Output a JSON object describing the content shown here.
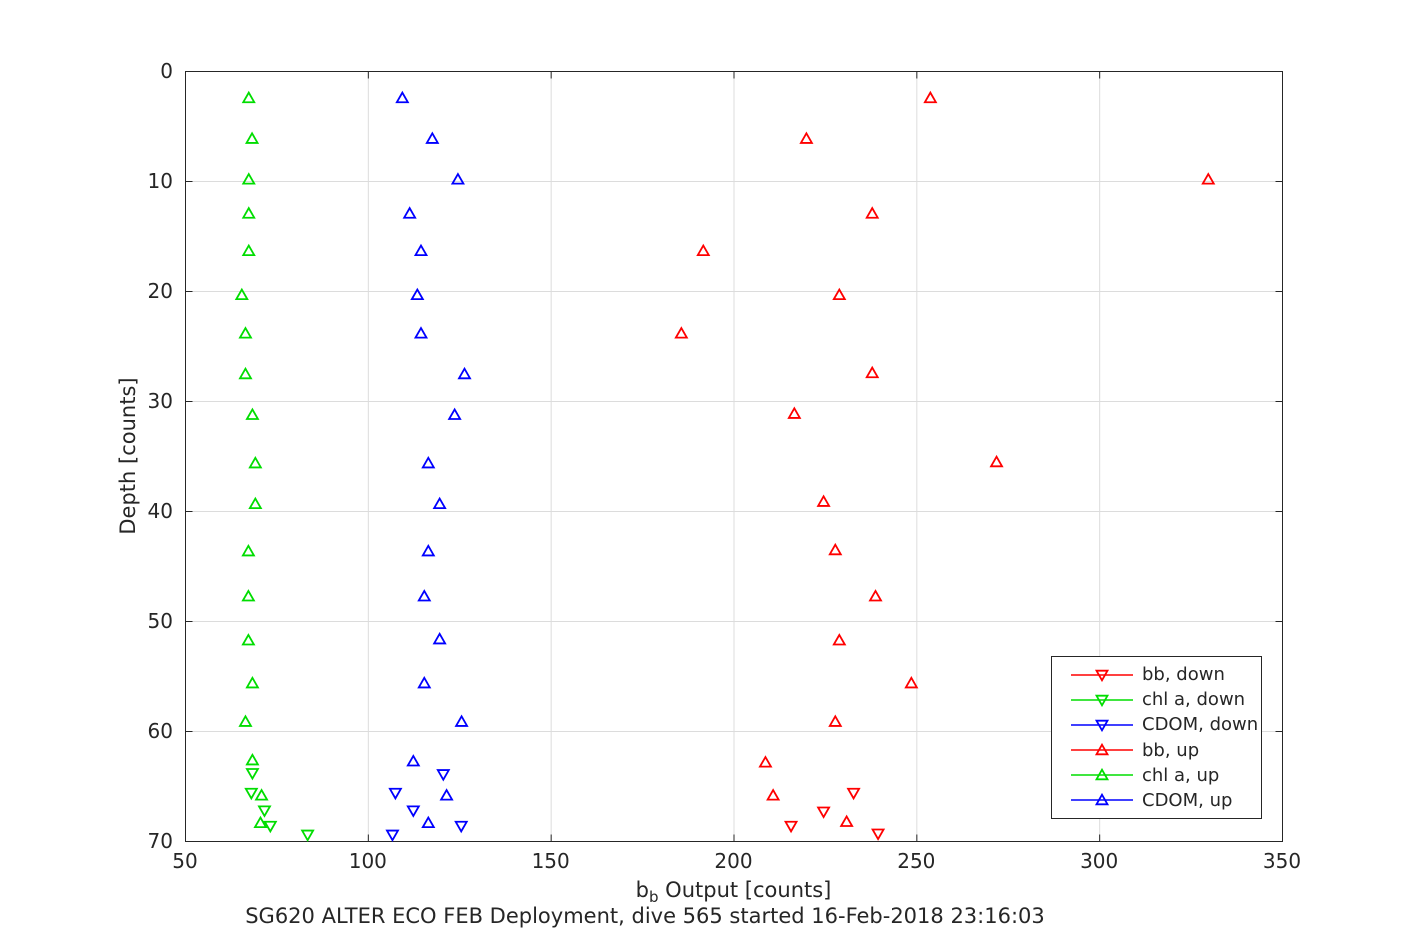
{
  "chart_data": {
    "type": "scatter",
    "title": "SG620 ALTER ECO FEB Deployment, dive 565 started 16-Feb-2018 23:16:03",
    "xlabel": {
      "base": "b",
      "sub": "b",
      "rest": " Output [counts]"
    },
    "xlabel_text": "b_b Output [counts]",
    "ylabel": "Depth [counts]",
    "xlim": [
      50,
      350
    ],
    "ylim": [
      0,
      70
    ],
    "y_axis_reversed": true,
    "xticks": [
      "50",
      "100",
      "150",
      "200",
      "250",
      "300",
      "350"
    ],
    "yticks": [
      "0",
      "10",
      "20",
      "30",
      "40",
      "50",
      "60",
      "70"
    ],
    "grid": true,
    "legend_position": "inside lower right",
    "colors": {
      "background": "#ffffff",
      "axis": "#262626",
      "grid": "#dcdcdc",
      "red": "#ff0000",
      "green": "#00dd00",
      "blue": "#0000ff"
    },
    "series": [
      {
        "name": "bb, down",
        "color": "#ff0000",
        "marker": "triangle-down",
        "points": [
          [
            232.7,
            65.6
          ],
          [
            224.5,
            67.3
          ],
          [
            215.6,
            68.6
          ],
          [
            239.4,
            69.3
          ]
        ]
      },
      {
        "name": "chl a, down",
        "color": "#00dd00",
        "marker": "triangle-down",
        "points": [
          [
            68.3,
            63.8
          ],
          [
            68.0,
            65.6
          ],
          [
            71.6,
            67.2
          ],
          [
            73.2,
            68.6
          ],
          [
            83.4,
            69.4
          ]
        ]
      },
      {
        "name": "CDOM, down",
        "color": "#0000ff",
        "marker": "triangle-down",
        "points": [
          [
            120.5,
            63.9
          ],
          [
            107.4,
            65.6
          ],
          [
            112.3,
            67.2
          ],
          [
            125.4,
            68.6
          ],
          [
            106.6,
            69.4
          ]
        ]
      },
      {
        "name": "bb, up",
        "color": "#ff0000",
        "marker": "triangle-up",
        "points": [
          [
            253.7,
            2.4
          ],
          [
            219.8,
            6.1
          ],
          [
            329.7,
            9.8
          ],
          [
            237.8,
            12.9
          ],
          [
            191.6,
            16.3
          ],
          [
            228.8,
            20.3
          ],
          [
            185.6,
            23.8
          ],
          [
            237.8,
            27.4
          ],
          [
            216.5,
            31.1
          ],
          [
            271.8,
            35.5
          ],
          [
            224.5,
            39.1
          ],
          [
            227.7,
            43.5
          ],
          [
            238.7,
            47.7
          ],
          [
            228.8,
            51.7
          ],
          [
            248.5,
            55.6
          ],
          [
            227.7,
            59.1
          ],
          [
            208.6,
            62.8
          ],
          [
            210.7,
            65.8
          ],
          [
            230.8,
            68.2
          ]
        ]
      },
      {
        "name": "chl a, up",
        "color": "#00dd00",
        "marker": "triangle-up",
        "points": [
          [
            67.3,
            2.4
          ],
          [
            68.2,
            6.1
          ],
          [
            67.3,
            9.8
          ],
          [
            67.3,
            12.9
          ],
          [
            67.3,
            16.3
          ],
          [
            65.4,
            20.3
          ],
          [
            66.4,
            23.8
          ],
          [
            66.4,
            27.5
          ],
          [
            68.3,
            31.2
          ],
          [
            69.1,
            35.6
          ],
          [
            69.1,
            39.3
          ],
          [
            67.2,
            43.6
          ],
          [
            67.2,
            47.7
          ],
          [
            67.2,
            51.7
          ],
          [
            68.3,
            55.6
          ],
          [
            66.4,
            59.1
          ],
          [
            68.3,
            62.6
          ],
          [
            70.8,
            65.8
          ],
          [
            70.5,
            68.3
          ]
        ]
      },
      {
        "name": "CDOM, up",
        "color": "#0000ff",
        "marker": "triangle-up",
        "points": [
          [
            109.3,
            2.4
          ],
          [
            117.5,
            6.1
          ],
          [
            124.5,
            9.8
          ],
          [
            111.3,
            12.9
          ],
          [
            114.4,
            16.3
          ],
          [
            113.4,
            20.3
          ],
          [
            114.4,
            23.8
          ],
          [
            126.3,
            27.5
          ],
          [
            123.6,
            31.2
          ],
          [
            116.4,
            35.6
          ],
          [
            119.5,
            39.3
          ],
          [
            116.4,
            43.6
          ],
          [
            115.3,
            47.7
          ],
          [
            119.5,
            51.6
          ],
          [
            115.3,
            55.6
          ],
          [
            125.5,
            59.1
          ],
          [
            112.3,
            62.7
          ],
          [
            121.4,
            65.8
          ],
          [
            116.4,
            68.3
          ]
        ]
      }
    ]
  }
}
